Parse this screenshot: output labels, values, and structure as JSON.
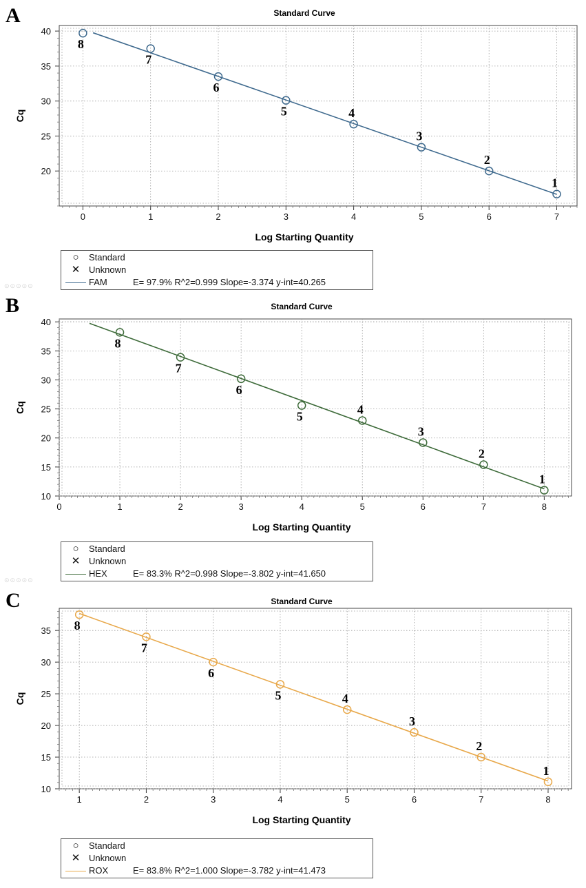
{
  "charts": [
    {
      "panel_label": "A",
      "color": "#3f6a8e",
      "chart_data": {
        "type": "scatter",
        "title": "Standard Curve",
        "xlabel": "Log Starting Quantity",
        "ylabel": "Cq",
        "xlim": [
          -0.35,
          7.3
        ],
        "ylim": [
          15,
          40.8
        ],
        "xticks": [
          0,
          1,
          2,
          3,
          4,
          5,
          6,
          7
        ],
        "yticks": [
          20,
          25,
          30,
          35,
          40
        ],
        "series": [
          {
            "name": "Standard",
            "x": [
              0,
              1,
              2,
              3,
              4,
              5,
              6,
              7
            ],
            "y": [
              39.7,
              37.5,
              33.5,
              30.1,
              26.7,
              23.4,
              20.0,
              16.7
            ],
            "labels": [
              "8",
              "7",
              "6",
              "5",
              "4",
              "3",
              "2",
              "1"
            ],
            "label_pos": [
              "below",
              "below",
              "below",
              "below",
              "above",
              "above",
              "above",
              "above"
            ]
          }
        ],
        "fit": {
          "x": [
            0.15,
            7
          ],
          "y": [
            39.76,
            16.66
          ]
        },
        "legend": {
          "items": [
            {
              "marker": "circle",
              "label": "Standard"
            },
            {
              "marker": "x",
              "label": "Unknown"
            },
            {
              "marker": "line",
              "label": "FAM",
              "stats": "E= 97.9% R^2=0.999 Slope=-3.374 y-int=40.265"
            }
          ]
        }
      }
    },
    {
      "panel_label": "B",
      "color": "#3e6b3a",
      "chart_data": {
        "type": "scatter",
        "title": "Standard Curve",
        "xlabel": "Log Starting Quantity",
        "ylabel": "Cq",
        "xlim": [
          0,
          8.45
        ],
        "ylim": [
          10,
          40.5
        ],
        "xticks": [
          0,
          1,
          2,
          3,
          4,
          5,
          6,
          7,
          8
        ],
        "yticks": [
          10,
          15,
          20,
          25,
          30,
          35,
          40
        ],
        "series": [
          {
            "name": "Standard",
            "x": [
              1,
              2,
              3,
              4,
              5,
              6,
              7,
              8
            ],
            "y": [
              38.2,
              33.9,
              30.2,
              25.6,
              23.0,
              19.2,
              15.4,
              11.0
            ],
            "labels": [
              "8",
              "7",
              "6",
              "5",
              "4",
              "3",
              "2",
              "1"
            ],
            "label_pos": [
              "below",
              "below",
              "below",
              "below",
              "above",
              "above",
              "above",
              "above"
            ]
          }
        ],
        "fit": {
          "x": [
            0.5,
            8
          ],
          "y": [
            39.75,
            11.23
          ]
        },
        "legend": {
          "items": [
            {
              "marker": "circle",
              "label": "Standard"
            },
            {
              "marker": "x",
              "label": "Unknown"
            },
            {
              "marker": "line",
              "label": "HEX",
              "stats": "E= 83.3% R^2=0.998 Slope=-3.802 y-int=41.650"
            }
          ]
        }
      }
    },
    {
      "panel_label": "C",
      "color": "#e8a84a",
      "chart_data": {
        "type": "scatter",
        "title": "Standard Curve",
        "xlabel": "Log Starting Quantity",
        "ylabel": "Cq",
        "xlim": [
          0.7,
          8.35
        ],
        "ylim": [
          10,
          38.5
        ],
        "xticks": [
          1,
          2,
          3,
          4,
          5,
          6,
          7,
          8
        ],
        "yticks": [
          10,
          15,
          20,
          25,
          30,
          35
        ],
        "series": [
          {
            "name": "Standard",
            "x": [
              1,
              2,
              3,
              4,
              5,
              6,
              7,
              8
            ],
            "y": [
              37.5,
              34.0,
              30.0,
              26.5,
              22.5,
              18.9,
              15.0,
              11.1
            ],
            "labels": [
              "8",
              "7",
              "6",
              "5",
              "4",
              "3",
              "2",
              "1"
            ],
            "label_pos": [
              "below",
              "below",
              "below",
              "below",
              "above",
              "above",
              "above",
              "above"
            ]
          }
        ],
        "fit": {
          "x": [
            1,
            8
          ],
          "y": [
            37.69,
            11.22
          ]
        },
        "legend": {
          "items": [
            {
              "marker": "circle",
              "label": "Standard"
            },
            {
              "marker": "x",
              "label": "Unknown"
            },
            {
              "marker": "line",
              "label": "ROX",
              "stats": "E= 83.8% R^2=1.000 Slope=-3.782 y-int=41.473"
            }
          ]
        }
      }
    }
  ]
}
